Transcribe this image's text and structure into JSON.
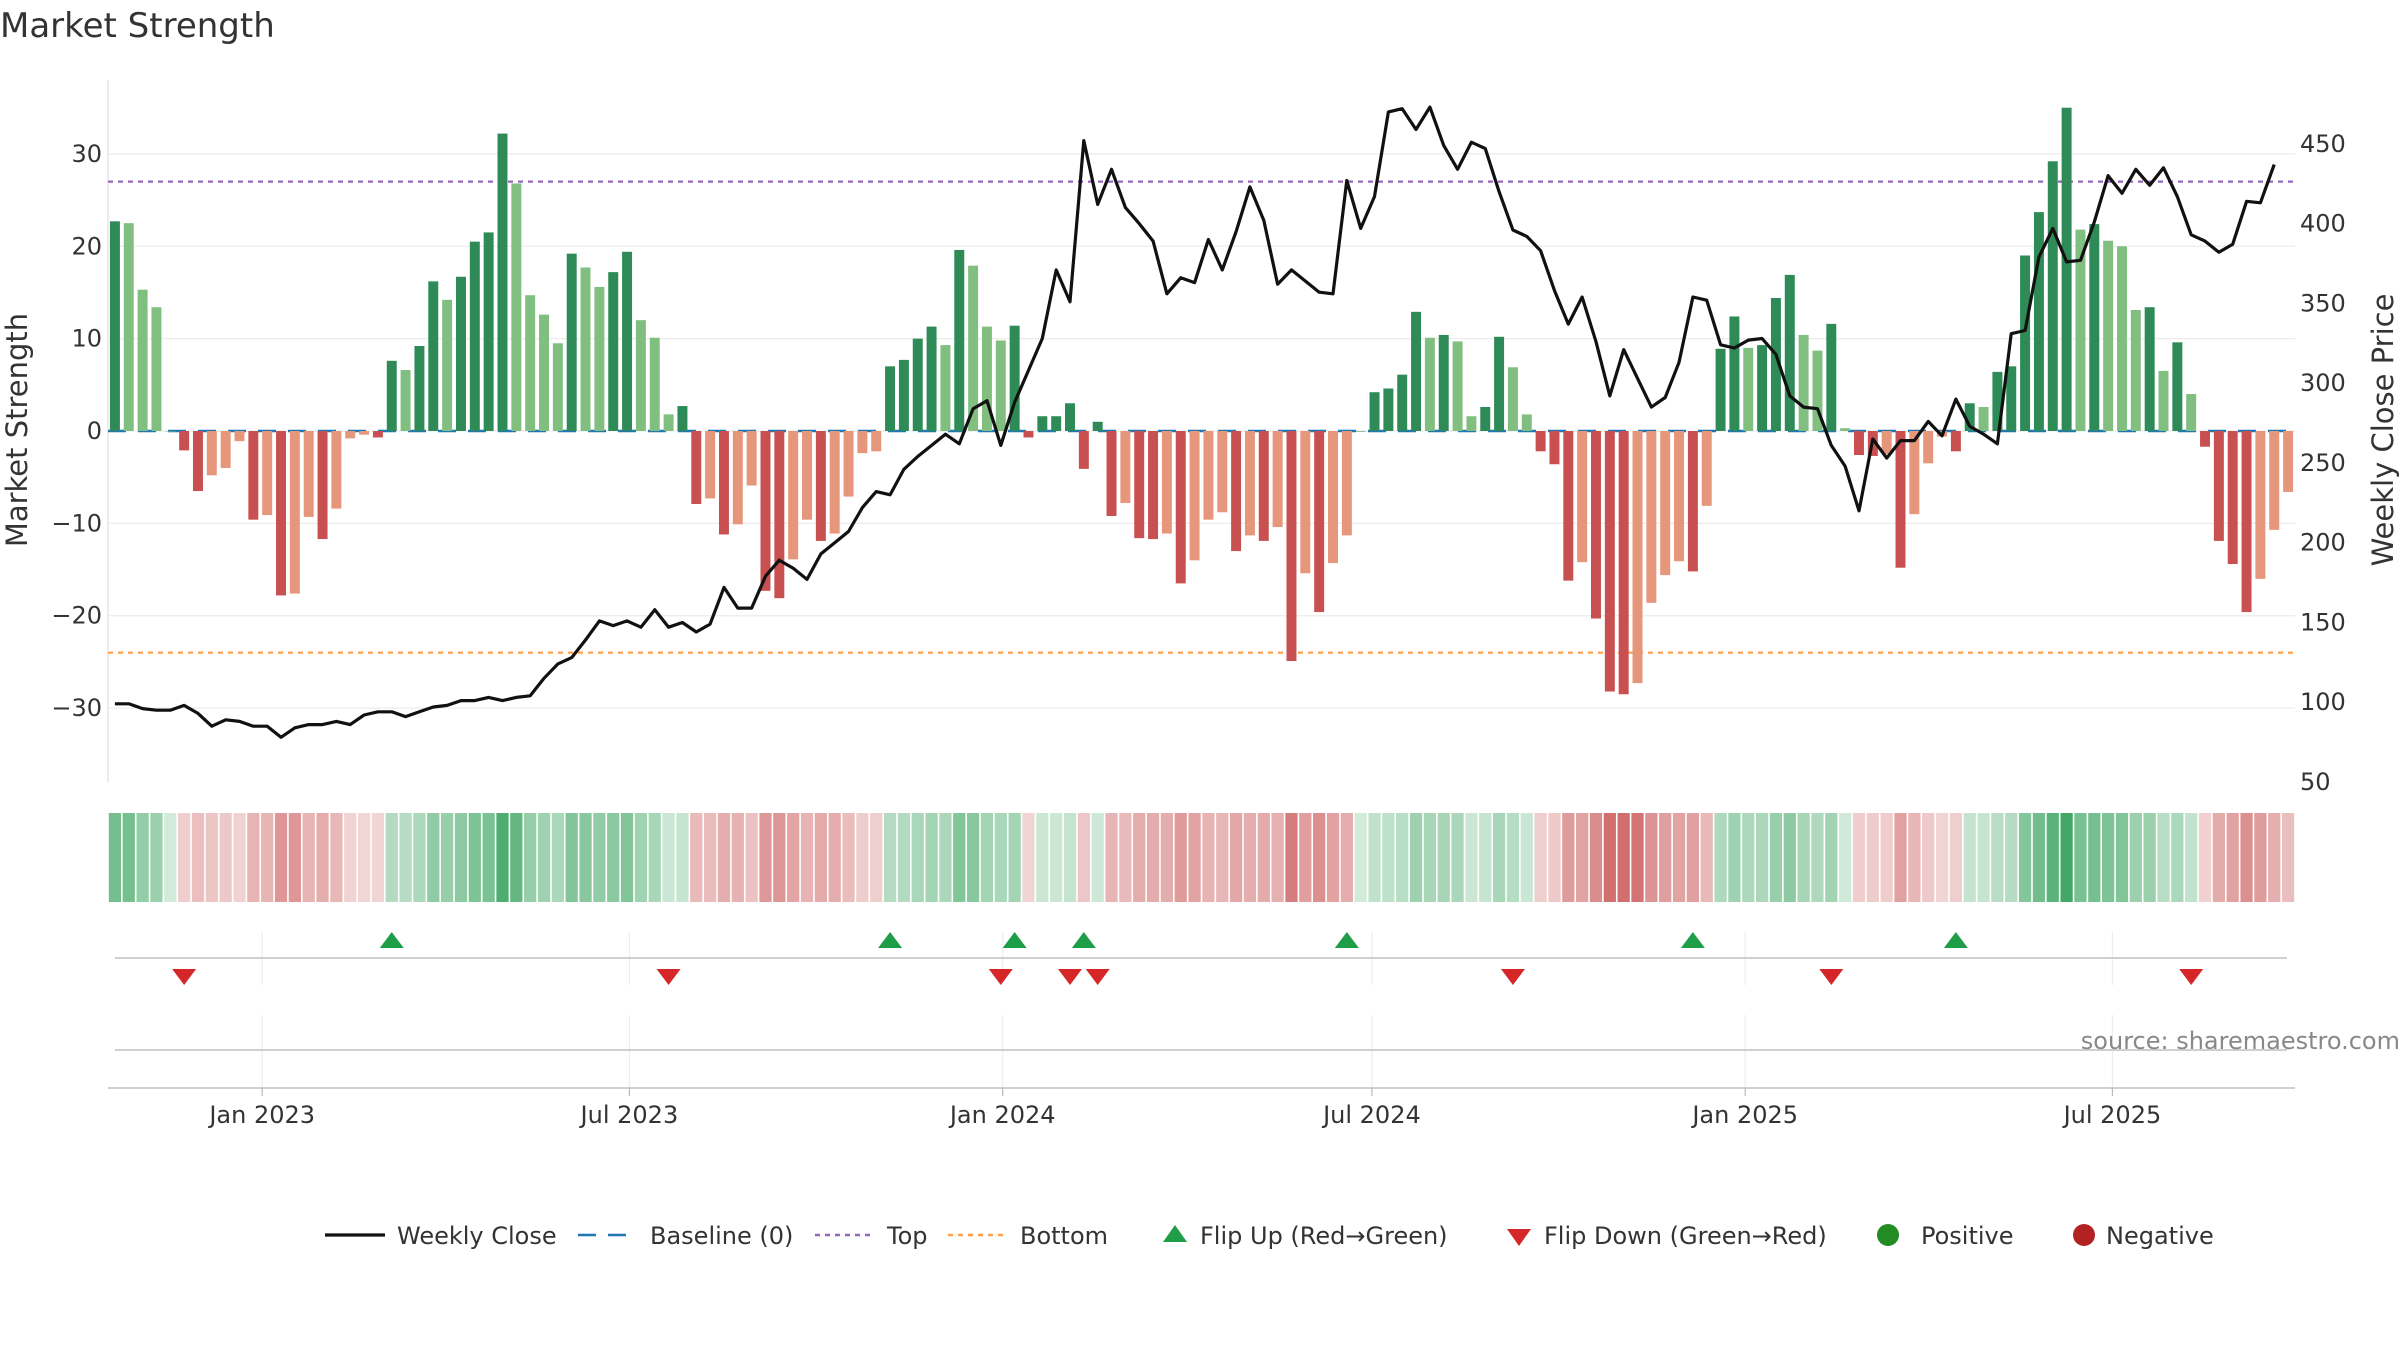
{
  "chart_data": {
    "type": "bar",
    "title": "Market Strength",
    "ylabel_left": "Market Strength",
    "ylabel_right": "Weekly Close Price",
    "ylim_left": [
      -38,
      38
    ],
    "ylim_right": [
      50,
      490
    ],
    "yticks_left": [
      "30",
      "20",
      "10",
      "0",
      "−10",
      "−20",
      "−30"
    ],
    "yticks_left_values": [
      30,
      20,
      10,
      0,
      -10,
      -20,
      -30
    ],
    "yticks_right": [
      "450",
      "400",
      "350",
      "300",
      "250",
      "200",
      "150",
      "100",
      "50"
    ],
    "yticks_right_values": [
      450,
      400,
      350,
      300,
      250,
      200,
      150,
      100,
      50
    ],
    "x_start": "2022-10-17",
    "x_end": "2025-09-29",
    "xticks": [
      {
        "date": "2023-01-01",
        "label": "Jan 2023"
      },
      {
        "date": "2023-07-01",
        "label": "Jul 2023"
      },
      {
        "date": "2024-01-01",
        "label": "Jan 2024"
      },
      {
        "date": "2024-07-01",
        "label": "Jul 2024"
      },
      {
        "date": "2025-01-01",
        "label": "Jan 2025"
      },
      {
        "date": "2025-07-01",
        "label": "Jul 2025"
      }
    ],
    "top_line": 27,
    "bottom_line": -24,
    "baseline": 0,
    "strength": [
      22.7,
      22.5,
      15.3,
      13.4,
      0,
      -2.1,
      -6.5,
      -4.8,
      -4.0,
      -1.1,
      -9.6,
      -9.1,
      -17.8,
      -17.6,
      -9.3,
      -11.7,
      -8.4,
      -0.8,
      -0.4,
      -0.7,
      7.6,
      6.6,
      9.2,
      16.2,
      14.2,
      16.7,
      20.5,
      21.5,
      32.2,
      26.8,
      14.7,
      12.6,
      9.5,
      19.2,
      17.7,
      15.6,
      17.2,
      19.4,
      12.0,
      10.1,
      1.8,
      2.7,
      -7.9,
      -7.3,
      -11.2,
      -10.1,
      -5.9,
      -17.3,
      -18.1,
      -13.9,
      -9.6,
      -11.9,
      -11.1,
      -7.1,
      -2.4,
      -2.2,
      7.0,
      7.7,
      10.0,
      11.3,
      9.3,
      19.6,
      17.9,
      11.3,
      9.8,
      11.4,
      -0.7,
      1.6,
      1.6,
      3.0,
      -4.1,
      1.0,
      -9.2,
      -7.8,
      -11.6,
      -11.7,
      -11.1,
      -16.5,
      -14.0,
      -9.6,
      -8.8,
      -13.0,
      -11.3,
      -11.9,
      -10.4,
      -24.9,
      -15.4,
      -19.6,
      -14.3,
      -11.3,
      0,
      4.2,
      4.6,
      6.1,
      12.9,
      10.1,
      10.4,
      9.7,
      1.6,
      2.6,
      10.2,
      6.9,
      1.8,
      -2.2,
      -3.6,
      -16.2,
      -14.2,
      -20.3,
      -28.2,
      -28.5,
      -27.3,
      -18.6,
      -15.6,
      -14.1,
      -15.2,
      -8.1,
      8.9,
      12.4,
      9.0,
      9.3,
      14.4,
      16.9,
      10.4,
      8.7,
      11.6,
      0.3,
      -2.6,
      -2.7,
      -2.5,
      -14.8,
      -9.0,
      -3.5,
      -0.6,
      -2.2,
      3.0,
      2.6,
      6.4,
      7.0,
      19.0,
      23.7,
      29.2,
      35.0,
      21.8,
      22.4,
      20.6,
      20.0,
      13.1,
      13.4,
      6.5,
      9.6,
      4.0,
      -1.7,
      -11.9,
      -14.4,
      -19.6,
      -16.0,
      -10.7,
      -6.6
    ],
    "weekly_close": [
      99,
      99,
      96,
      95,
      95,
      98,
      93,
      85,
      89,
      88,
      85,
      85,
      78,
      84,
      86,
      86,
      88,
      86,
      92,
      94,
      94,
      91,
      94,
      97,
      98,
      101,
      101,
      103,
      101,
      103,
      104,
      115,
      124,
      128,
      139,
      151,
      148,
      151,
      147,
      158,
      147,
      150,
      144,
      149,
      172,
      159,
      159,
      179,
      189,
      184,
      177,
      193,
      200,
      207,
      222,
      232,
      230,
      246,
      254,
      261,
      268,
      262,
      284,
      289,
      261,
      288,
      308,
      328,
      371,
      351,
      452,
      412,
      434,
      410,
      400,
      389,
      356,
      366,
      363,
      390,
      371,
      395,
      423,
      402,
      362,
      371,
      364,
      357,
      356,
      427,
      397,
      417,
      470,
      472,
      459,
      473,
      449,
      434,
      451,
      447,
      420,
      396,
      392,
      383,
      358,
      337,
      354,
      326,
      292,
      321,
      303,
      285,
      291,
      313,
      354,
      352,
      324,
      322,
      327,
      328,
      318,
      292,
      285,
      284,
      261,
      248,
      220,
      265,
      253,
      264,
      264,
      276,
      267,
      290,
      273,
      268,
      262,
      331,
      333,
      379,
      397,
      376,
      377,
      401,
      430,
      419,
      434,
      424,
      435,
      417,
      393,
      389,
      382,
      387,
      414,
      413,
      437
    ],
    "flip_up_index": [
      20,
      56,
      65,
      70,
      89,
      114,
      133
    ],
    "flip_down_index": [
      5,
      40,
      64,
      69,
      71,
      101,
      124,
      150
    ],
    "positive_green_strong": "#2e8b57",
    "positive_green_mid": "#46a365",
    "positive_green_light": "#80bf80",
    "negative_red_strong": "#c85050",
    "negative_red_light": "#e6967a",
    "legend": [
      {
        "label": "Weekly Close",
        "marker": "line",
        "color": "#111111"
      },
      {
        "label": "Baseline (0)",
        "marker": "dash",
        "color": "#1f77b4"
      },
      {
        "label": "Top",
        "marker": "dot",
        "color": "#9467bd"
      },
      {
        "label": "Bottom",
        "marker": "dot",
        "color": "#ff9f4a"
      },
      {
        "label": "Flip Up (Red→Green)",
        "marker": "triangle-up",
        "color": "#1f9e48"
      },
      {
        "label": "Flip Down (Green→Red)",
        "marker": "triangle-down",
        "color": "#d62728"
      },
      {
        "label": "Positive",
        "marker": "circle",
        "color": "#228b22"
      },
      {
        "label": "Negative",
        "marker": "circle",
        "color": "#b22222"
      }
    ],
    "source": "source: sharemaestro.com"
  }
}
